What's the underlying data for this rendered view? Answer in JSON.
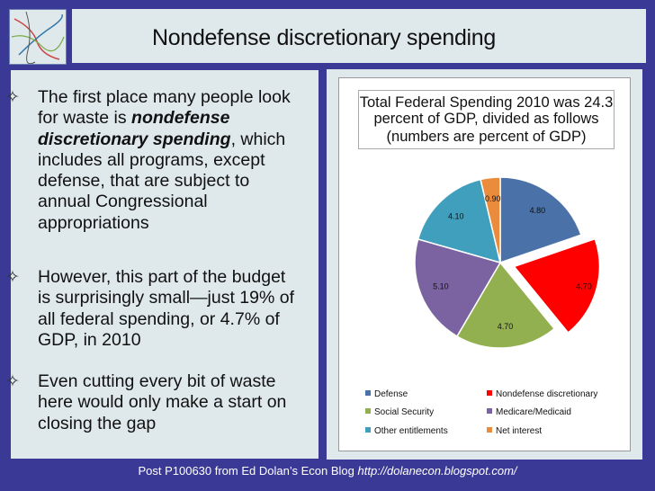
{
  "slide": {
    "title": "Nondefense discretionary spending",
    "bullets": [
      {
        "lines": [
          {
            "before": "The first place many people look",
            "emph": "",
            "after": ""
          },
          {
            "before": "for waste is ",
            "emph": "nondefense",
            "after": ""
          },
          {
            "before": "",
            "emph": "discretionary spending",
            "after": ", which"
          },
          {
            "before": "includes all programs, except",
            "emph": "",
            "after": ""
          },
          {
            "before": "defense, that are subject to",
            "emph": "",
            "after": ""
          },
          {
            "before": "annual Congressional",
            "emph": "",
            "after": ""
          },
          {
            "before": "appropriations",
            "emph": "",
            "after": ""
          }
        ]
      },
      {
        "lines": [
          {
            "before": "However, this part of the budget",
            "emph": "",
            "after": ""
          },
          {
            "before": "is surprisingly small—just 19% of",
            "emph": "",
            "after": ""
          },
          {
            "before": "all federal spending, or 4.7% of",
            "emph": "",
            "after": ""
          },
          {
            "before": "GDP, in 2010",
            "emph": "",
            "after": ""
          }
        ]
      },
      {
        "lines": [
          {
            "before": "Even cutting every bit of waste",
            "emph": "",
            "after": ""
          },
          {
            "before": "here would only make a start on",
            "emph": "",
            "after": ""
          },
          {
            "before": "closing the gap",
            "emph": "",
            "after": ""
          }
        ]
      }
    ],
    "bullet_icon": "diamond-star-icon",
    "footer": {
      "text": "Post P100630 from Ed Dolan’s Econ Blog ",
      "url": "http://dolanecon.blogspot.com/"
    },
    "logo_icon": "abstract-lines-logo",
    "colors": {
      "background": "#3a3a96",
      "panel": "#dfe9ec"
    }
  },
  "chart_data": {
    "type": "pie",
    "title_lines": [
      "Total Federal Spending 2010 was 24.3",
      "percent of GDP, divided as follows",
      "(numbers are percent of GDP)"
    ],
    "categories": [
      "Defense",
      "Nondefense discretionary",
      "Social Security",
      "Medicare/Medicaid",
      "Other entitlements",
      "Net interest"
    ],
    "values": [
      4.8,
      4.7,
      4.7,
      5.1,
      4.1,
      0.9
    ],
    "data_labels": [
      "4.80",
      "4.70",
      "4.70",
      "5.10",
      "4.10",
      "0.90"
    ],
    "colors": [
      "#4a72a8",
      "#ff0000",
      "#93b051",
      "#7b62a0",
      "#3f9fbd",
      "#ea8c3c"
    ],
    "exploded": "Nondefense discretionary",
    "legend_position": "bottom"
  }
}
